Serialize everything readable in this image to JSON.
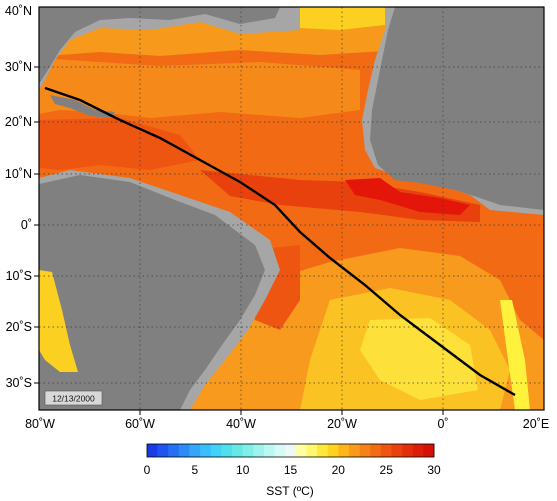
{
  "map": {
    "date_stamp": "12/13/2000",
    "lon_labels": [
      "80˚W",
      "60˚W",
      "40˚W",
      "20˚W",
      "0˚",
      "20˚E"
    ],
    "lat_labels": [
      "40˚N",
      "30˚N",
      "20˚N",
      "10˚N",
      "0˚",
      "10˚S",
      "20˚S",
      "30˚S"
    ],
    "colors": {
      "land": "#808080",
      "shelf": "#a6a6a6",
      "sst_warm": "#f45a14",
      "sst_hot": "#e4160a",
      "sst_mid": "#f79a1c",
      "sst_cool": "#fbd020",
      "sst_cold": "#fff23c",
      "track": "#000000",
      "grid": "#3a3a3a"
    }
  },
  "colorbar": {
    "tick_labels": [
      "0",
      "5",
      "10",
      "15",
      "20",
      "25",
      "30"
    ],
    "title": "SST (ºC)",
    "colors": [
      "#1a3ce6",
      "#1f55ee",
      "#2670f4",
      "#2d8bf8",
      "#33a5fb",
      "#39bdfb",
      "#40d2f7",
      "#4fe0ee",
      "#66e8e6",
      "#80efe6",
      "#9df4ee",
      "#bdf7f4",
      "#d9f9f7",
      "#eef9f5",
      "#ffffa8",
      "#fff870",
      "#ffe83c",
      "#ffd21f",
      "#fdb51a",
      "#f99a1a",
      "#f58216",
      "#f26c14",
      "#ee5511",
      "#e8410e",
      "#e22e0b",
      "#dc1e09",
      "#d61007"
    ]
  }
}
